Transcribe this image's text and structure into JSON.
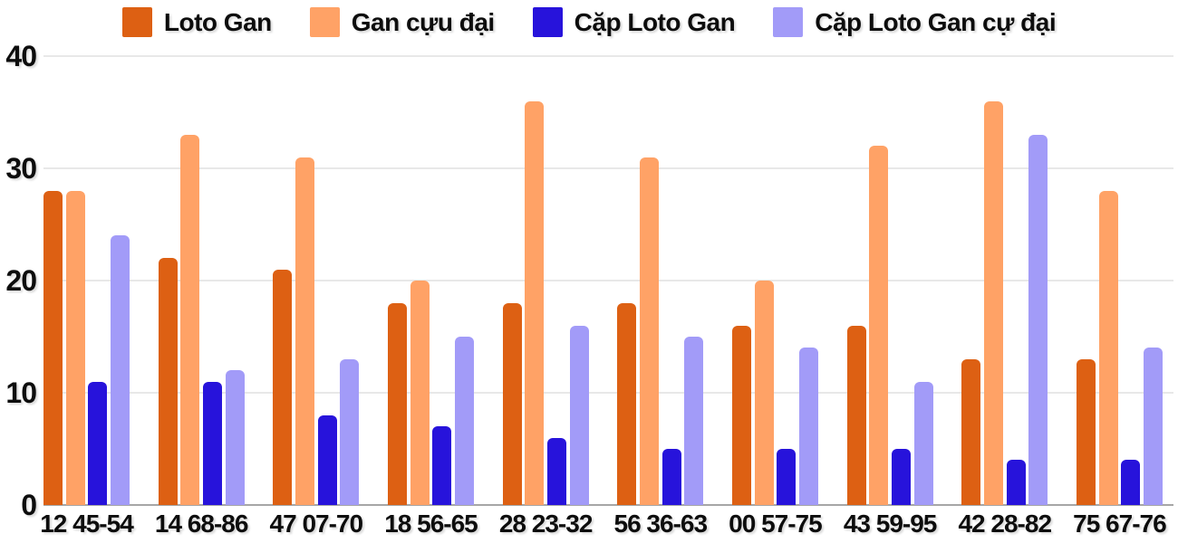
{
  "chart_data": {
    "type": "bar",
    "title": "",
    "xlabel": "",
    "ylabel": "",
    "ylim": [
      0,
      40
    ],
    "yticks": [
      0,
      10,
      20,
      30,
      40
    ],
    "grid": true,
    "legend_position": "top",
    "categories": [
      "12 45-54",
      "14 68-86",
      "47 07-70",
      "18 56-65",
      "28 23-32",
      "56 36-63",
      "00 57-75",
      "43 59-95",
      "42 28-82",
      "75 67-76"
    ],
    "series": [
      {
        "name": "Loto Gan",
        "color": "#DD6013",
        "values": [
          28,
          22,
          21,
          18,
          18,
          18,
          16,
          16,
          13,
          13
        ]
      },
      {
        "name": "Gan cựu đại",
        "color": "#FFA266",
        "values": [
          28,
          33,
          31,
          20,
          36,
          31,
          20,
          32,
          36,
          28
        ]
      },
      {
        "name": "Cặp Loto Gan",
        "color": "#2713DB",
        "values": [
          11,
          11,
          8,
          7,
          6,
          5,
          5,
          5,
          4,
          4
        ]
      },
      {
        "name": "Cặp Loto Gan cự đại",
        "color": "#A29BF8",
        "values": [
          24,
          12,
          13,
          15,
          16,
          15,
          14,
          11,
          33,
          14
        ]
      }
    ]
  },
  "colors": {
    "gridline": "#e8e8e8",
    "baseline": "#a6a6a6",
    "text": "#0d0d0d",
    "background": "#ffffff"
  }
}
